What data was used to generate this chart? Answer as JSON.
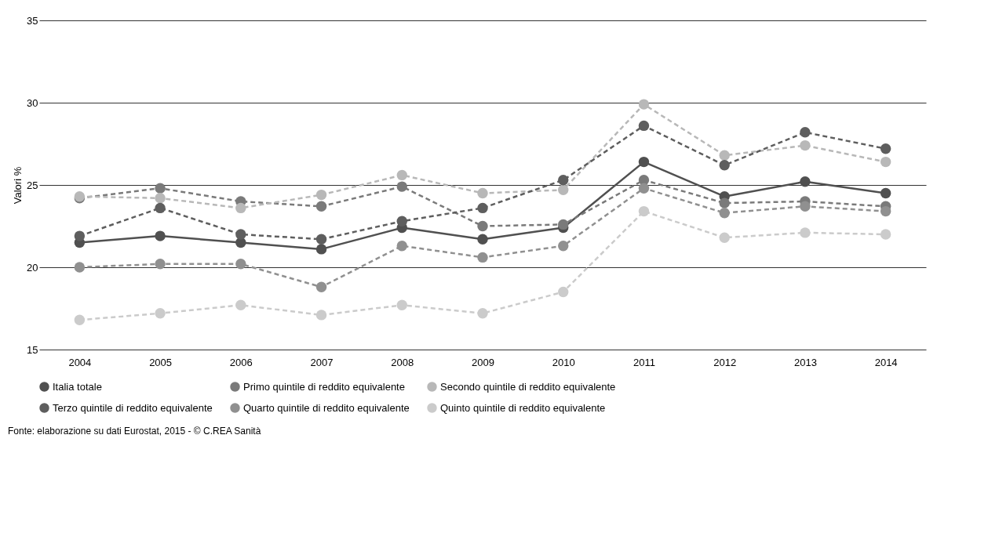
{
  "chart_data": {
    "type": "line",
    "ylabel": "Valori %",
    "categories": [
      "2004",
      "2005",
      "2006",
      "2007",
      "2008",
      "2009",
      "2010",
      "2011",
      "2012",
      "2013",
      "2014"
    ],
    "series": [
      {
        "name": "Italia totale",
        "color": "#505050",
        "line_style": "solid",
        "values": [
          21.5,
          21.9,
          21.5,
          21.1,
          22.4,
          21.7,
          22.4,
          26.4,
          24.3,
          25.2,
          24.5
        ]
      },
      {
        "name": "Primo quintile di reddito equivalente",
        "color": "#7a7a7a",
        "line_style": "dashed",
        "values": [
          24.2,
          24.8,
          24.0,
          23.7,
          24.9,
          22.5,
          22.6,
          25.3,
          23.9,
          24.0,
          23.7
        ]
      },
      {
        "name": "Secondo quintile di reddito equivalente",
        "color": "#b8b8b8",
        "line_style": "dashed",
        "values": [
          24.3,
          24.2,
          23.6,
          24.4,
          25.6,
          24.5,
          24.7,
          29.9,
          26.8,
          27.4,
          26.4
        ]
      },
      {
        "name": "Terzo quintile di reddito equivalente",
        "color": "#5e5e5e",
        "line_style": "dashed",
        "values": [
          21.9,
          23.6,
          22.0,
          21.7,
          22.8,
          23.6,
          25.3,
          28.6,
          26.2,
          28.2,
          27.2
        ]
      },
      {
        "name": "Quarto quintile di reddito equivalente",
        "color": "#909090",
        "line_style": "dashed",
        "values": [
          20.0,
          20.2,
          20.2,
          18.8,
          21.3,
          20.6,
          21.3,
          24.8,
          23.3,
          23.7,
          23.4
        ]
      },
      {
        "name": "Quinto quintile di reddito equivalente",
        "color": "#cbcbcb",
        "line_style": "dashed",
        "values": [
          16.8,
          17.2,
          17.7,
          17.1,
          17.7,
          17.2,
          18.5,
          23.4,
          21.8,
          22.1,
          22.0
        ]
      }
    ],
    "ylim": [
      15,
      35
    ],
    "yticks": [
      15,
      20,
      25,
      30,
      35
    ],
    "grid": "y",
    "marker": "circle",
    "legend": "bottom",
    "annotations": [
      "Fonte: elaborazione su dati Eurostat, 2015 - © C.REA Sanità"
    ]
  }
}
